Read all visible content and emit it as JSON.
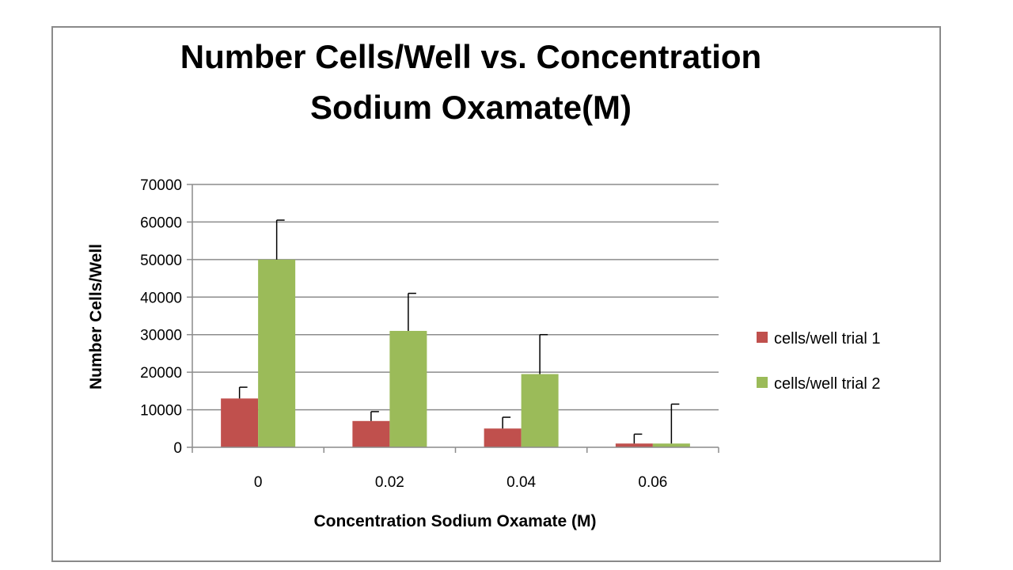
{
  "chart_data": {
    "type": "bar",
    "title_lines": [
      "Number Cells/Well vs. Concentration",
      "Sodium Oxamate(M)"
    ],
    "xlabel": "Concentration Sodium Oxamate (M)",
    "ylabel": "Number Cells/Well",
    "categories": [
      "0",
      "0.02",
      "0.04",
      "0.06"
    ],
    "ylim": [
      0,
      70000
    ],
    "yticks": [
      0,
      10000,
      20000,
      30000,
      40000,
      50000,
      60000,
      70000
    ],
    "grid": true,
    "legend_position": "right",
    "series": [
      {
        "name": "cells/well trial 1",
        "color": "#c0504d",
        "values": [
          13000,
          7000,
          5000,
          1000
        ],
        "error": [
          3000,
          2500,
          3000,
          2500
        ]
      },
      {
        "name": "cells/well trial 2",
        "color": "#9bbb59",
        "values": [
          50000,
          31000,
          19500,
          1000
        ],
        "error": [
          10500,
          10000,
          10500,
          10500
        ]
      }
    ]
  }
}
